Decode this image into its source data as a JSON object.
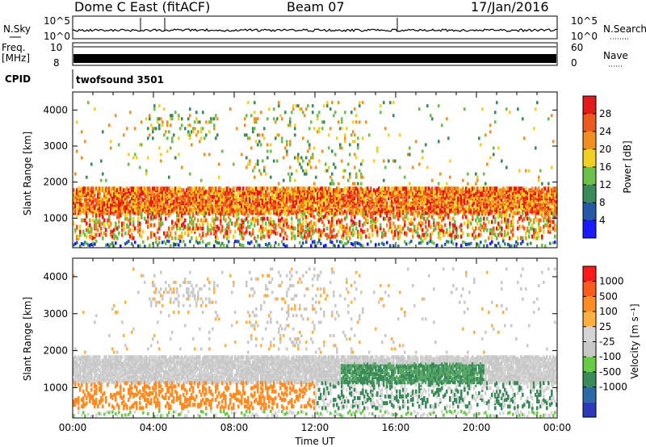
{
  "header": {
    "station": "Dome C East (fitACF)",
    "beam": "Beam 07",
    "date": "17/Jan/2016"
  },
  "top_panels": {
    "nsky_label": "N.Sky",
    "nsky_ticks": [
      "10^5",
      "10^0"
    ],
    "nsearch_label": "N.Search",
    "nsearch_ticks": [
      "10^5",
      "10^0"
    ],
    "freq_label_1": "Freq.",
    "freq_label_2": "[MHz]",
    "freq_ticks": [
      "10",
      "8"
    ],
    "nave_label": "Nave",
    "nave_ticks": [
      "60",
      "0"
    ],
    "cpid_label": "CPID",
    "cpid_value": "twofsound 3501"
  },
  "colors": {
    "power_scale": [
      "#1a1aff",
      "#2457a8",
      "#3a8a5a",
      "#6cc04a",
      "#f0d020",
      "#f09020",
      "#ee5a1e",
      "#e41a1a"
    ],
    "velocity_scale": [
      "#ff1a1a",
      "#ff5a1e",
      "#ff8c22",
      "#ffb040",
      "#d4d4d4",
      "#c8c8c8",
      "#66cc44",
      "#3a8a5a",
      "#2a6aa8",
      "#2a3ab8"
    ]
  },
  "chart_data": [
    {
      "type": "heatmap",
      "panel": "power",
      "title": "",
      "ylabel": "Slant Range [km]",
      "ylim": [
        180,
        4500
      ],
      "x_ticks": [
        "00:00",
        "04:00",
        "08:00",
        "12:00",
        "16:00",
        "20:00",
        "00:00"
      ],
      "y_ticks": [
        1000,
        2000,
        3000,
        4000
      ],
      "colorbar_label": "Power [dB]",
      "colorbar_ticks": [
        4,
        8,
        12,
        16,
        20,
        24,
        28
      ],
      "colorbar_range": [
        0,
        32
      ]
    },
    {
      "type": "heatmap",
      "panel": "velocity",
      "title": "",
      "xlabel": "Time UT",
      "ylabel": "Slant Range [km]",
      "ylim": [
        180,
        4500
      ],
      "x_ticks": [
        "00:00",
        "04:00",
        "08:00",
        "12:00",
        "16:00",
        "20:00",
        "00:00"
      ],
      "y_ticks": [
        1000,
        2000,
        3000,
        4000
      ],
      "colorbar_label": "Velocity [m s⁻¹]",
      "colorbar_ticks": [
        1000,
        500,
        100,
        25,
        -25,
        -100,
        -500,
        -1000
      ]
    }
  ]
}
